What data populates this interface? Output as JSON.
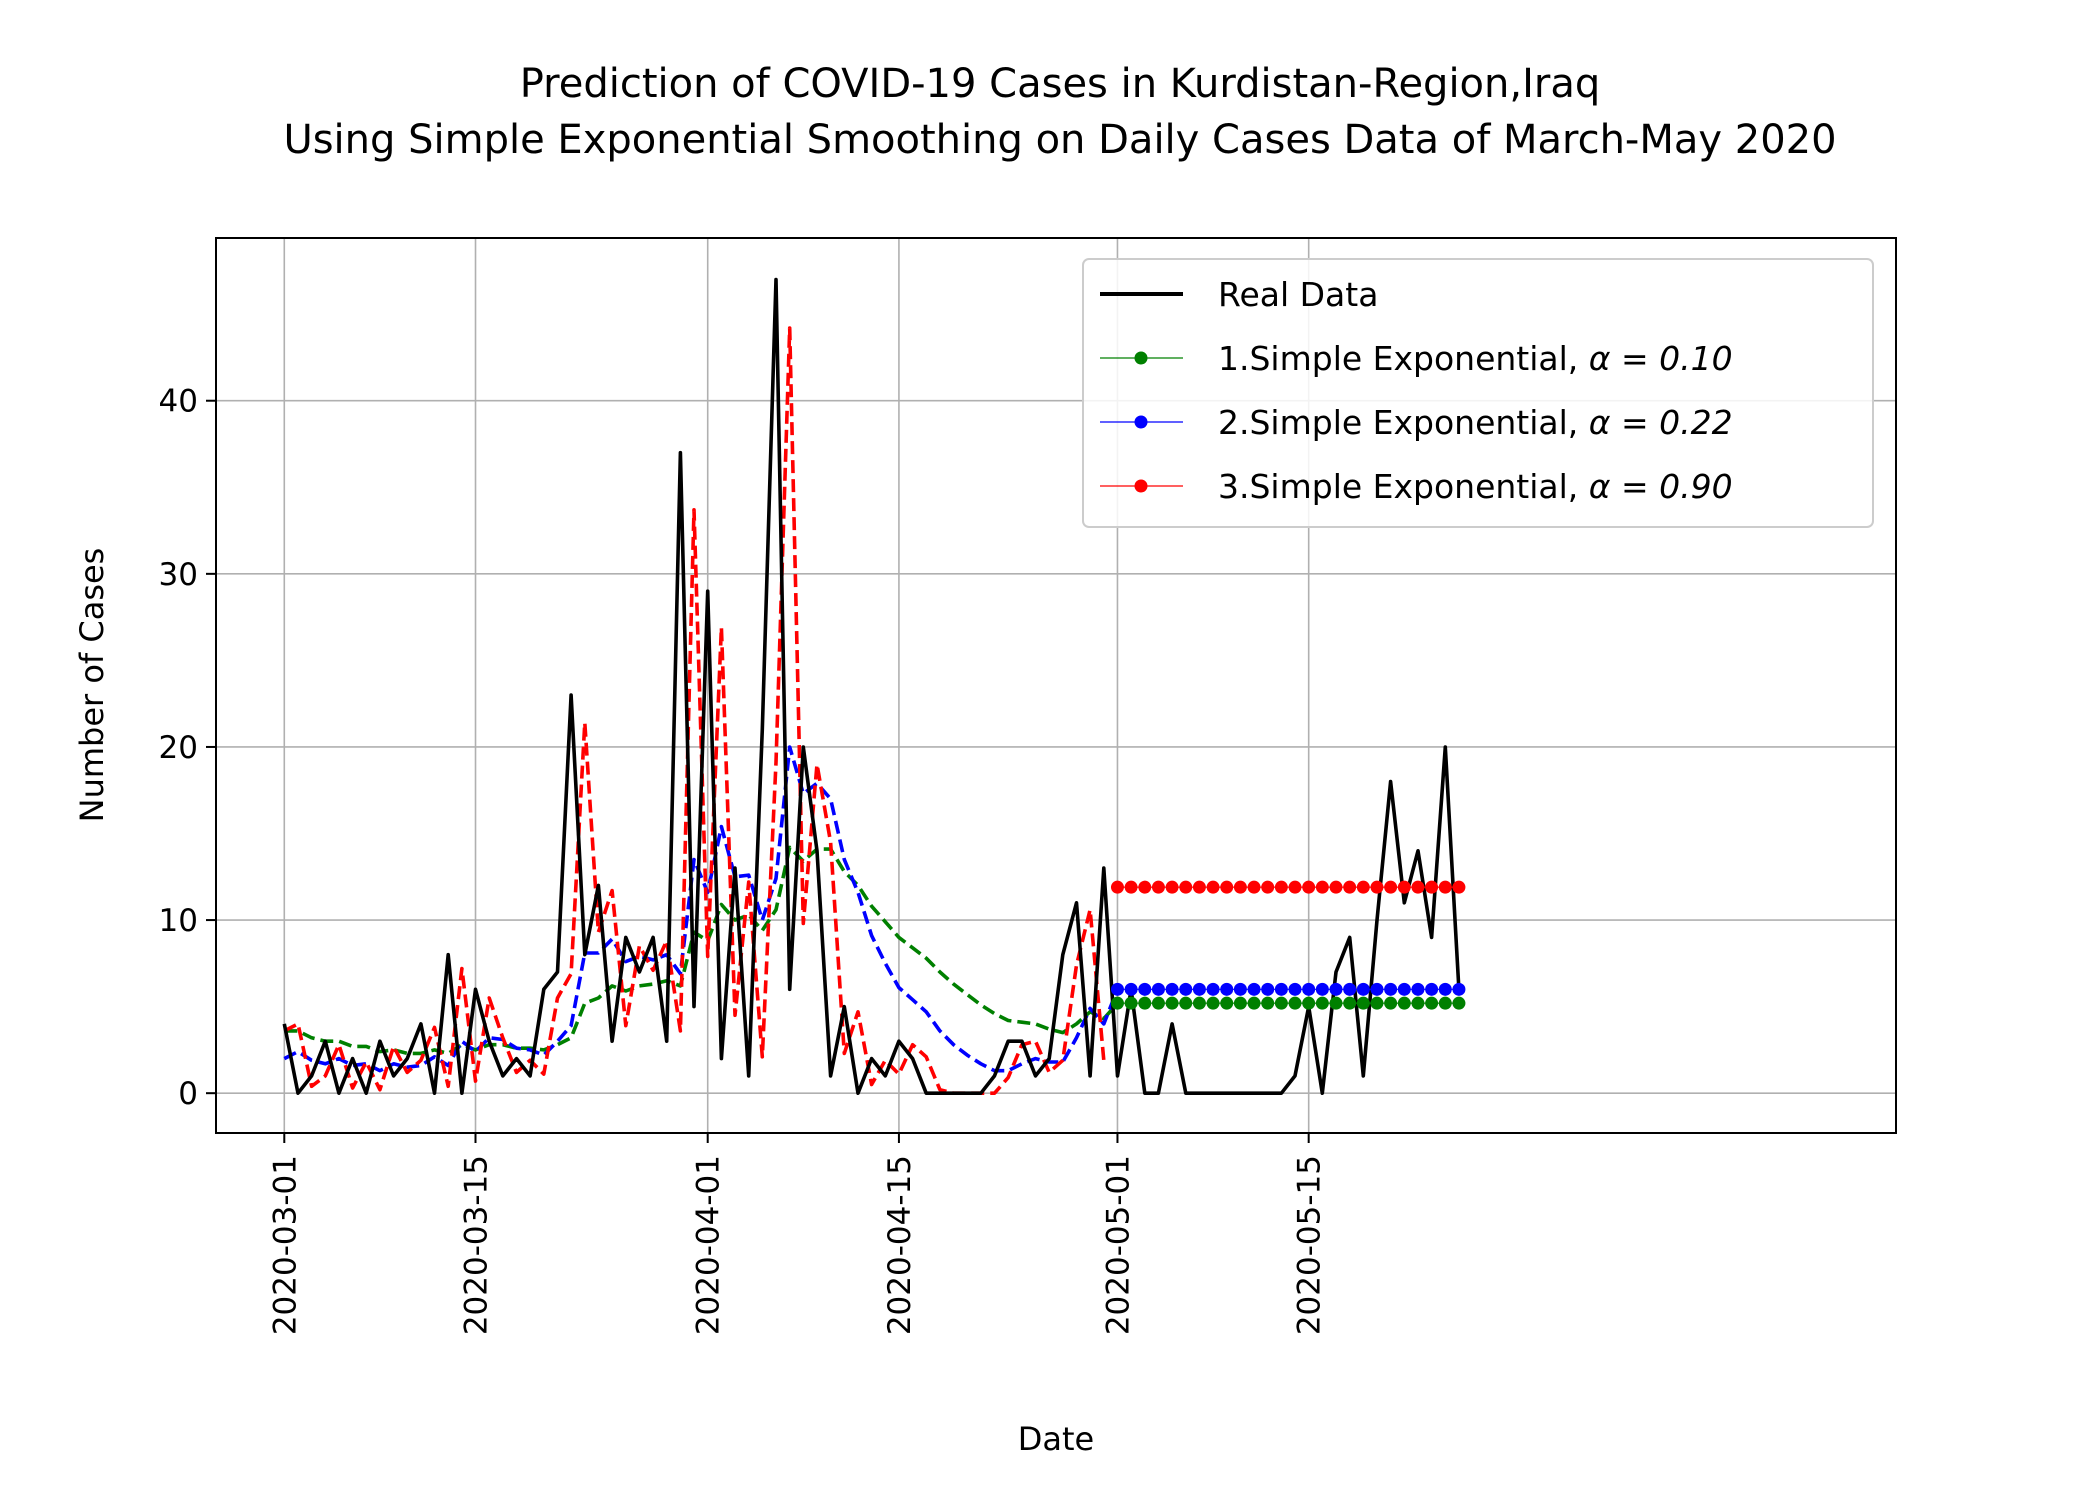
{
  "chart_data": {
    "type": "line",
    "title": [
      "Prediction of COVID-19 Cases in Kurdistan-Region,Iraq",
      "Using Simple Exponential Smoothing on Daily Cases Data of March-May 2020"
    ],
    "xlabel": "Date",
    "ylabel": "Number of Cases",
    "x_start": "2020-03-01",
    "xlim": [
      "2020-02-25",
      "2020-06-27"
    ],
    "ylim": [
      -2.3,
      49.4
    ],
    "xticks": [
      "2020-03-01",
      "2020-03-15",
      "2020-04-01",
      "2020-04-15",
      "2020-05-01",
      "2020-05-15"
    ],
    "yticks": [
      0,
      10,
      20,
      30,
      40
    ],
    "grid": true,
    "legend_position": "top-right",
    "legend": [
      {
        "label": "Real Data",
        "math": "",
        "color": "#000000",
        "style": "line"
      },
      {
        "label": "1.Simple Exponential, ",
        "math": "α = 0.10",
        "color": "#008000",
        "style": "marker"
      },
      {
        "label": "2.Simple Exponential, ",
        "math": "α = 0.22",
        "color": "#0000ff",
        "style": "marker"
      },
      {
        "label": "3.Simple Exponential, ",
        "math": "α = 0.90",
        "color": "#ff0000",
        "style": "marker"
      }
    ],
    "real_data": {
      "name": "Real Data",
      "color": "#000000",
      "values": [
        4,
        0,
        1,
        3,
        0,
        2,
        0,
        3,
        1,
        2,
        4,
        0,
        8,
        0,
        6,
        3,
        1,
        2,
        1,
        6,
        7,
        23,
        8,
        12,
        3,
        9,
        7,
        9,
        3,
        37,
        5,
        29,
        2,
        13,
        1,
        21,
        47,
        6,
        20,
        14,
        1,
        5,
        0,
        2,
        1,
        3,
        2,
        0,
        0,
        0,
        0,
        0,
        1,
        3,
        3,
        1,
        2,
        8,
        11,
        1,
        13,
        1,
        6,
        0,
        0,
        4,
        0,
        0,
        0,
        0,
        0,
        0,
        0,
        0,
        1,
        5,
        0,
        7,
        9,
        1,
        10,
        18,
        11,
        14,
        9,
        20,
        6
      ]
    },
    "fitted": [
      {
        "alpha": 0.1,
        "color": "#008000",
        "values": [
          3.6,
          3.6,
          3.2,
          3.0,
          3.0,
          2.7,
          2.7,
          2.4,
          2.5,
          2.3,
          2.3,
          2.5,
          2.3,
          2.8,
          2.5,
          2.8,
          2.8,
          2.6,
          2.6,
          2.5,
          2.8,
          3.2,
          5.2,
          5.5,
          6.2,
          5.9,
          6.2,
          6.3,
          6.5,
          6.2,
          9.3,
          8.8,
          10.9,
          10.0,
          10.3,
          9.4,
          10.6,
          14.2,
          13.4,
          14.1,
          14.1,
          12.8,
          12.0,
          10.8,
          9.9,
          9.0,
          8.4,
          7.8,
          7.0,
          6.3,
          5.7,
          5.1,
          4.6,
          4.2,
          4.1,
          4.0,
          3.7,
          3.5,
          4.0,
          4.7,
          4.3,
          5.2
        ]
      },
      {
        "alpha": 0.22,
        "color": "#0000ff",
        "values": [
          2.0,
          2.4,
          1.9,
          1.7,
          2.0,
          1.6,
          1.7,
          1.3,
          1.7,
          1.5,
          1.6,
          2.1,
          1.6,
          3.0,
          2.4,
          3.2,
          3.1,
          2.6,
          2.5,
          2.2,
          3.0,
          3.9,
          8.1,
          8.1,
          8.9,
          7.6,
          7.9,
          7.7,
          8.0,
          6.9,
          13.5,
          11.6,
          15.4,
          12.5,
          12.6,
          10.0,
          12.4,
          20.0,
          17.3,
          17.9,
          17.0,
          13.5,
          11.6,
          9.1,
          7.5,
          6.1,
          5.4,
          4.7,
          3.6,
          2.8,
          2.2,
          1.7,
          1.3,
          1.3,
          1.7,
          2.0,
          1.8,
          1.8,
          3.2,
          4.9,
          4.0,
          6.0
        ]
      },
      {
        "alpha": 0.9,
        "color": "#ff0000",
        "values": [
          3.6,
          4.0,
          0.4,
          1.0,
          2.8,
          0.3,
          1.8,
          0.2,
          2.7,
          1.2,
          1.9,
          3.8,
          0.4,
          7.2,
          0.7,
          5.5,
          3.2,
          1.2,
          1.9,
          1.1,
          5.5,
          6.9,
          21.4,
          9.3,
          11.7,
          3.9,
          8.5,
          7.1,
          8.8,
          3.6,
          33.7,
          7.9,
          26.9,
          4.5,
          12.2,
          2.1,
          19.1,
          44.2,
          9.8,
          19.0,
          14.5,
          2.3,
          4.7,
          0.5,
          1.9,
          1.1,
          2.8,
          2.1,
          0.2,
          0.0,
          0.0,
          0.0,
          0.0,
          0.9,
          2.8,
          3.0,
          1.2,
          1.9,
          7.4,
          10.6,
          1.9
        ]
      }
    ],
    "forecast": [
      {
        "alpha": 0.1,
        "color": "#008000",
        "value": 5.2,
        "x_from": "2020-05-01",
        "x_to": "2020-05-26"
      },
      {
        "alpha": 0.22,
        "color": "#0000ff",
        "value": 6.0,
        "x_from": "2020-05-01",
        "x_to": "2020-05-26"
      },
      {
        "alpha": 0.9,
        "color": "#ff0000",
        "value": 11.9,
        "x_from": "2020-05-01",
        "x_to": "2020-05-26"
      }
    ]
  }
}
